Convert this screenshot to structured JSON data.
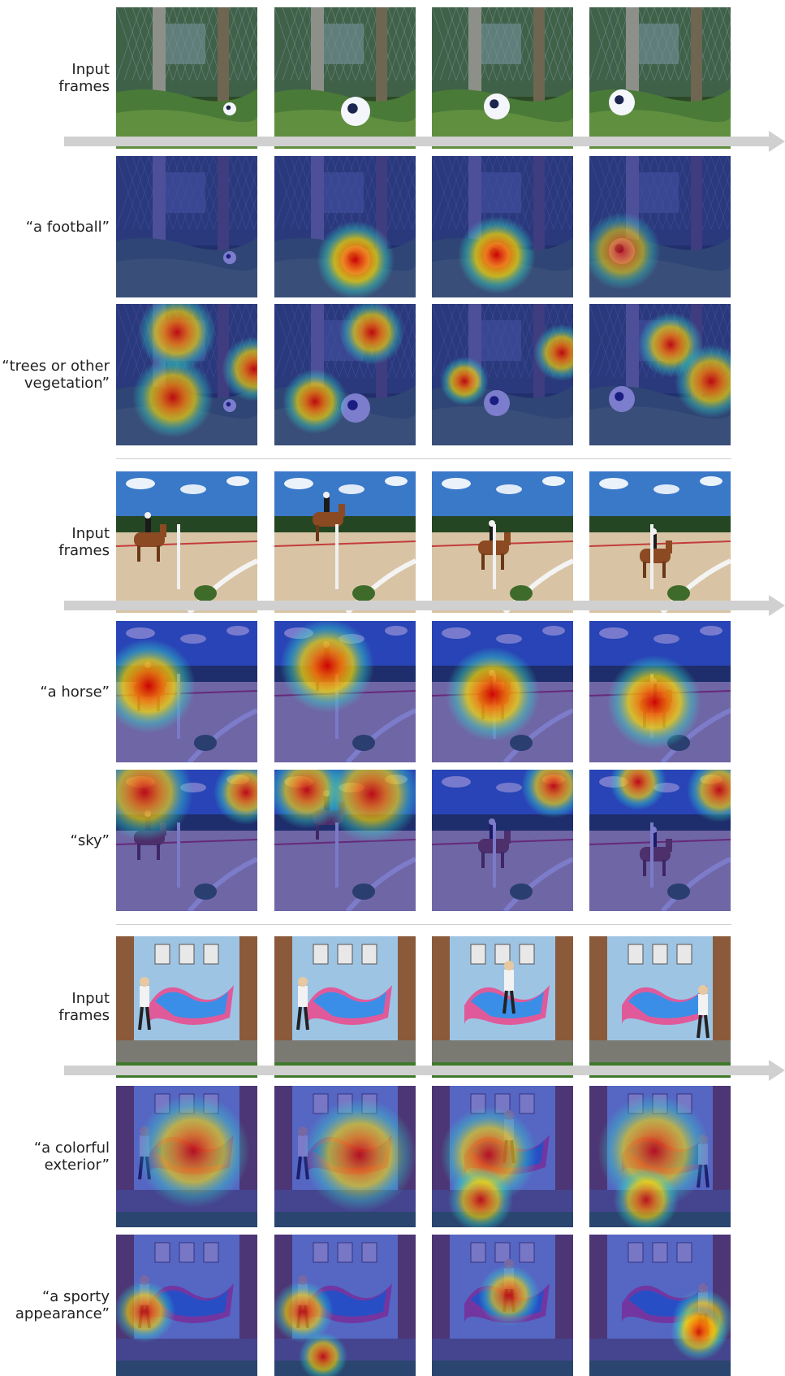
{
  "panels": [
    {
      "id": "football-scene",
      "scene": "football",
      "rows": [
        {
          "label": "Input\nframes",
          "type": "input"
        },
        {
          "label": "“a football”",
          "type": "attention"
        },
        {
          "label": "“trees or other\nvegetation”",
          "type": "attention"
        }
      ]
    },
    {
      "id": "horse-scene",
      "scene": "horse",
      "rows": [
        {
          "label": "Input\nframes",
          "type": "input"
        },
        {
          "label": "“a horse”",
          "type": "attention"
        },
        {
          "label": "“sky”",
          "type": "attention"
        }
      ]
    },
    {
      "id": "skater-scene",
      "scene": "skater",
      "rows": [
        {
          "label": "Input\nframes",
          "type": "input"
        },
        {
          "label": "“a colorful\nexterior”",
          "type": "attention"
        },
        {
          "label": "“a sporty\nappearance”",
          "type": "attention"
        }
      ]
    }
  ],
  "colors": {
    "arrow": "#d0d0d0",
    "separator": "#cfcfcf",
    "attention_low": "#1a1aa8",
    "attention_high": "#d40000"
  }
}
